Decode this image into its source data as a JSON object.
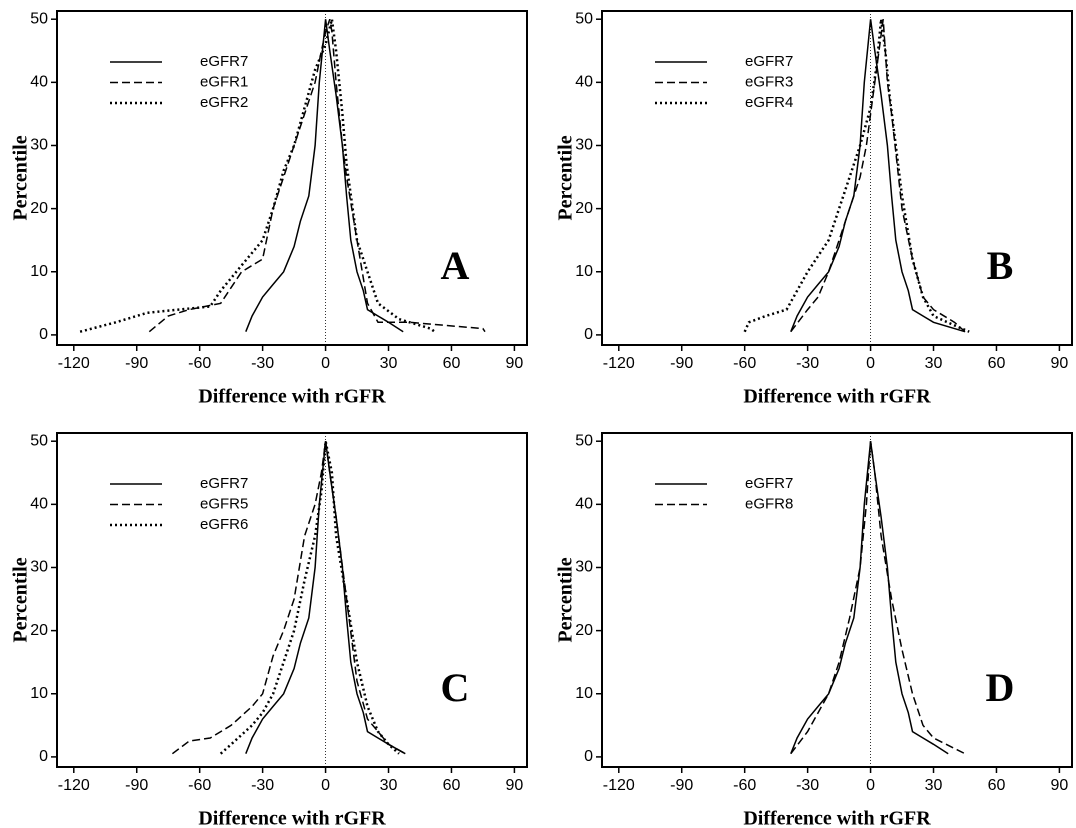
{
  "chart_data": [
    {
      "type": "line",
      "panel_label": "A",
      "xlabel": "Difference with rGFR",
      "ylabel": "Percentile",
      "xlim": [
        -128,
        96
      ],
      "ylim": [
        -1.6,
        51.3
      ],
      "xticks": [
        -120,
        -90,
        -60,
        -30,
        0,
        30,
        60,
        90
      ],
      "yticks": [
        0,
        10,
        20,
        30,
        40,
        50
      ],
      "ref_line_x": 0,
      "series": [
        {
          "name": "eGFR7",
          "color": "#000000",
          "style": "solid",
          "x": [
            -38,
            -35,
            -30,
            -25,
            -20,
            -15,
            -12,
            -8,
            -5,
            -3,
            0,
            2,
            5,
            8,
            10,
            12,
            15,
            18,
            20,
            25,
            30,
            37
          ],
          "values": [
            0.5,
            3,
            6,
            8,
            10,
            14,
            18,
            22,
            30,
            40,
            50,
            45,
            38,
            30,
            22,
            15,
            10,
            7,
            4,
            3,
            2,
            0.5
          ]
        },
        {
          "name": "eGFR1",
          "color": "#000000",
          "style": "dashed",
          "x": [
            -84,
            -75,
            -65,
            -50,
            -40,
            -30,
            -25,
            -20,
            -15,
            -10,
            -5,
            -2,
            0,
            2,
            3,
            5,
            8,
            10,
            15,
            20,
            25,
            40,
            75,
            76
          ],
          "values": [
            0.5,
            3,
            4,
            5,
            10,
            12,
            20,
            25,
            30,
            35,
            40,
            45,
            48,
            50,
            48,
            40,
            30,
            25,
            15,
            5,
            2,
            2,
            1,
            0.5
          ]
        },
        {
          "name": "eGFR2",
          "color": "#000000",
          "style": "dotted",
          "x": [
            -117,
            -100,
            -85,
            -70,
            -55,
            -50,
            -40,
            -30,
            -25,
            -20,
            -15,
            -10,
            -5,
            0,
            3,
            5,
            8,
            10,
            15,
            20,
            25,
            35,
            50,
            52
          ],
          "values": [
            0.5,
            2,
            3.5,
            4,
            4.5,
            7,
            11,
            15,
            20,
            26,
            30,
            36,
            42,
            46,
            50,
            45,
            35,
            27,
            15,
            10,
            5,
            2.5,
            1,
            0.5
          ]
        }
      ]
    },
    {
      "type": "line",
      "panel_label": "B",
      "xlabel": "Difference with rGFR",
      "ylabel": "Percentile",
      "xlim": [
        -128,
        96
      ],
      "ylim": [
        -1.6,
        51.3
      ],
      "xticks": [
        -120,
        -90,
        -60,
        -30,
        0,
        30,
        60,
        90
      ],
      "yticks": [
        0,
        10,
        20,
        30,
        40,
        50
      ],
      "ref_line_x": 0,
      "series": [
        {
          "name": "eGFR7",
          "color": "#000000",
          "style": "solid",
          "x": [
            -38,
            -35,
            -30,
            -25,
            -20,
            -15,
            -12,
            -8,
            -5,
            -3,
            0,
            2,
            5,
            8,
            10,
            12,
            15,
            18,
            20,
            25,
            30,
            45
          ],
          "values": [
            0.5,
            3,
            6,
            8,
            10,
            14,
            18,
            22,
            30,
            40,
            50,
            45,
            38,
            30,
            22,
            15,
            10,
            7,
            4,
            3,
            2,
            0.5
          ]
        },
        {
          "name": "eGFR3",
          "color": "#000000",
          "style": "dashed",
          "x": [
            -38,
            -30,
            -25,
            -20,
            -15,
            -10,
            -5,
            -2,
            0,
            2,
            4,
            6,
            8,
            10,
            15,
            20,
            25,
            30,
            40,
            45
          ],
          "values": [
            0.5,
            4,
            6,
            10,
            15,
            20,
            25,
            30,
            35,
            40,
            45,
            50,
            40,
            35,
            20,
            12,
            6,
            4,
            2,
            0.5
          ]
        },
        {
          "name": "eGFR4",
          "color": "#000000",
          "style": "dotted",
          "x": [
            -60,
            -58,
            -50,
            -40,
            -30,
            -20,
            -15,
            -10,
            -5,
            0,
            3,
            5,
            7,
            9,
            12,
            15,
            20,
            25,
            30,
            40,
            47
          ],
          "values": [
            0.5,
            2,
            3,
            4,
            10,
            15,
            20,
            25,
            30,
            36,
            43,
            50,
            45,
            38,
            30,
            22,
            12,
            6,
            3,
            1.5,
            0.5
          ]
        }
      ]
    },
    {
      "type": "line",
      "panel_label": "C",
      "xlabel": "Difference with rGFR",
      "ylabel": "Percentile",
      "xlim": [
        -128,
        96
      ],
      "ylim": [
        -1.6,
        51.3
      ],
      "xticks": [
        -120,
        -90,
        -60,
        -30,
        0,
        30,
        60,
        90
      ],
      "yticks": [
        0,
        10,
        20,
        30,
        40,
        50
      ],
      "ref_line_x": 0,
      "series": [
        {
          "name": "eGFR7",
          "color": "#000000",
          "style": "solid",
          "x": [
            -38,
            -35,
            -30,
            -25,
            -20,
            -15,
            -12,
            -8,
            -5,
            -3,
            0,
            2,
            5,
            8,
            10,
            12,
            15,
            18,
            20,
            25,
            30,
            38
          ],
          "values": [
            0.5,
            3,
            6,
            8,
            10,
            14,
            18,
            22,
            30,
            40,
            50,
            45,
            38,
            30,
            22,
            15,
            10,
            7,
            4,
            3,
            2,
            0.5
          ]
        },
        {
          "name": "eGFR5",
          "color": "#000000",
          "style": "dashed",
          "x": [
            -73,
            -65,
            -55,
            -45,
            -35,
            -30,
            -25,
            -20,
            -15,
            -10,
            -5,
            -2,
            0,
            2,
            5,
            10,
            15,
            20,
            25,
            30,
            38
          ],
          "values": [
            0.5,
            2.5,
            3,
            5,
            8,
            10,
            16,
            20,
            25,
            35,
            40,
            45,
            50,
            45,
            38,
            25,
            12,
            6,
            4,
            2,
            0.5
          ]
        },
        {
          "name": "eGFR6",
          "color": "#000000",
          "style": "dotted",
          "x": [
            -50,
            -45,
            -35,
            -30,
            -25,
            -20,
            -15,
            -10,
            -5,
            -2,
            0,
            3,
            5,
            10,
            15,
            20,
            25,
            30,
            35
          ],
          "values": [
            0.5,
            2,
            5,
            7,
            10,
            15,
            20,
            28,
            35,
            42,
            50,
            45,
            35,
            25,
            15,
            8,
            4,
            2,
            0.5
          ]
        }
      ]
    },
    {
      "type": "line",
      "panel_label": "D",
      "xlabel": "Difference with rGFR",
      "ylabel": "Percentile",
      "xlim": [
        -128,
        96
      ],
      "ylim": [
        -1.6,
        51.3
      ],
      "xticks": [
        -120,
        -90,
        -60,
        -30,
        0,
        30,
        60,
        90
      ],
      "yticks": [
        0,
        10,
        20,
        30,
        40,
        50
      ],
      "ref_line_x": 0,
      "series": [
        {
          "name": "eGFR7",
          "color": "#000000",
          "style": "solid",
          "x": [
            -38,
            -35,
            -30,
            -25,
            -20,
            -15,
            -12,
            -8,
            -5,
            -3,
            0,
            2,
            5,
            8,
            10,
            12,
            15,
            18,
            20,
            25,
            30,
            37
          ],
          "values": [
            0.5,
            3,
            6,
            8,
            10,
            14,
            18,
            22,
            30,
            40,
            50,
            45,
            38,
            30,
            22,
            15,
            10,
            7,
            4,
            3,
            2,
            0.5
          ]
        },
        {
          "name": "eGFR8",
          "color": "#000000",
          "style": "dashed",
          "x": [
            -38,
            -30,
            -25,
            -20,
            -15,
            -10,
            -5,
            -2,
            0,
            2,
            5,
            10,
            15,
            20,
            25,
            30,
            45
          ],
          "values": [
            0.5,
            4,
            7,
            10,
            15,
            22,
            30,
            40,
            50,
            45,
            35,
            25,
            17,
            10,
            5,
            3,
            0.5
          ]
        }
      ]
    }
  ]
}
